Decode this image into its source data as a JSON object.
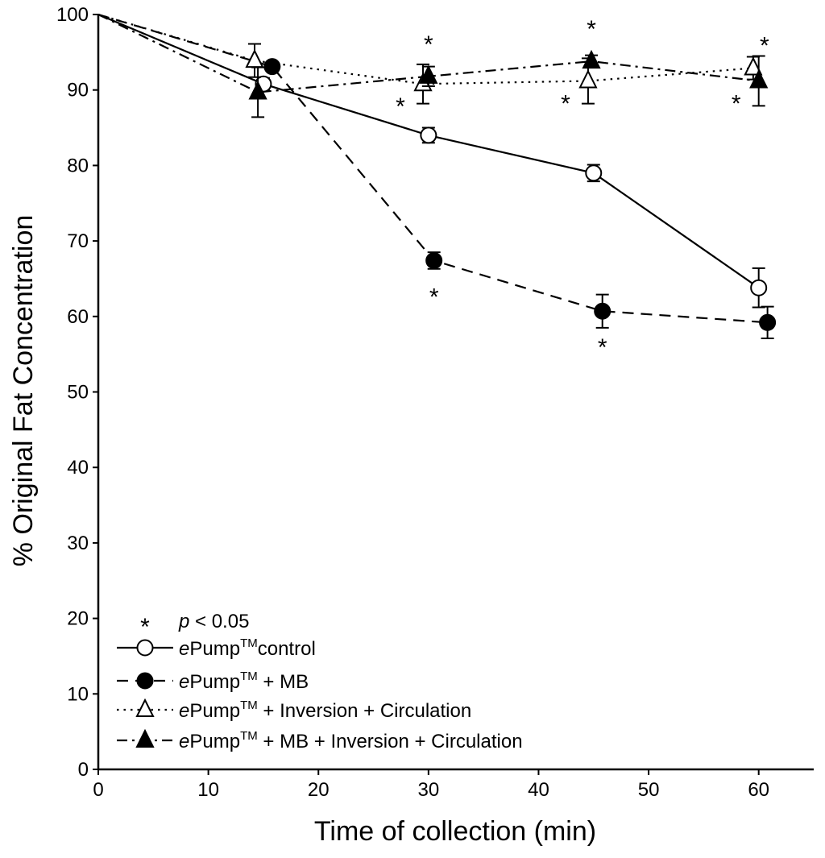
{
  "chart_data": {
    "type": "line",
    "title": "",
    "xlabel": "Time of collection (min)",
    "ylabel": "% Original Fat Concentration",
    "xlim": [
      0,
      65
    ],
    "ylim": [
      0,
      100
    ],
    "xticks": [
      "0",
      "10",
      "20",
      "30",
      "40",
      "50",
      "60"
    ],
    "yticks": [
      "0",
      "10",
      "20",
      "30",
      "40",
      "50",
      "60",
      "70",
      "80",
      "90",
      "100"
    ],
    "grid": false,
    "legend_position": "bottom-left",
    "significance": {
      "symbol": "*",
      "label": "p",
      "text": " < 0.05"
    },
    "series": [
      {
        "name": "ePump™ control",
        "legend_italic": "e",
        "legend_base": "Pump",
        "legend_sup": "TM",
        "legend_rest": "control",
        "marker": "circle-open",
        "line": "solid",
        "points": [
          {
            "x": 0,
            "y": 100
          },
          {
            "x": 15,
            "y": 90.8,
            "err": 0.8
          },
          {
            "x": 30,
            "y": 84,
            "err": 1.0
          },
          {
            "x": 45,
            "y": 79,
            "err": 1.1
          },
          {
            "x": 60,
            "y": 63.8,
            "err": 2.6
          }
        ]
      },
      {
        "name": "ePump™ + MB",
        "legend_italic": "e",
        "legend_base": "Pump",
        "legend_sup": "TM",
        "legend_rest": " + MB",
        "marker": "circle-filled",
        "line": "dashed",
        "points": [
          {
            "x": 0,
            "y": 100
          },
          {
            "x": 15.8,
            "y": 93.1,
            "err": 0.5
          },
          {
            "x": 30.5,
            "y": 67.4,
            "err": 1.1
          },
          {
            "x": 45.8,
            "y": 60.7,
            "err": 2.2,
            "star": "below"
          },
          {
            "x": 60.8,
            "y": 59.2,
            "err": 2.1
          }
        ]
      },
      {
        "name": "ePump™ + Inversion + Circulation",
        "legend_italic": "e",
        "legend_base": "Pump",
        "legend_sup": "TM",
        "legend_rest": " + Inversion + Circulation",
        "marker": "triangle-open",
        "line": "dotted",
        "points": [
          {
            "x": 0,
            "y": 100
          },
          {
            "x": 14.2,
            "y": 93.9,
            "err": 2.2
          },
          {
            "x": 29.5,
            "y": 90.8,
            "err": 2.6,
            "star": "left"
          },
          {
            "x": 44.5,
            "y": 91.2,
            "err": 3.0,
            "star": "left"
          },
          {
            "x": 59.5,
            "y": 92.9,
            "err": 1.5,
            "star": "right"
          }
        ]
      },
      {
        "name": "ePump™ + MB + Inversion + Circulation",
        "legend_italic": "e",
        "legend_base": "Pump",
        "legend_sup": "TM",
        "legend_rest": " + MB + Inversion + Circulation",
        "marker": "triangle-filled",
        "line": "dashdot",
        "points": [
          {
            "x": 0,
            "y": 100
          },
          {
            "x": 14.5,
            "y": 89.7,
            "err": 3.3
          },
          {
            "x": 30,
            "y": 91.8,
            "err": 1.3,
            "star": "above"
          },
          {
            "x": 44.8,
            "y": 93.8,
            "err": 0.8,
            "star": "above"
          },
          {
            "x": 60,
            "y": 91.2,
            "err": 3.3,
            "star": "left"
          }
        ]
      }
    ],
    "extra_stars": [
      {
        "x": 30.5,
        "y": 67.4,
        "pos": "below"
      }
    ]
  }
}
